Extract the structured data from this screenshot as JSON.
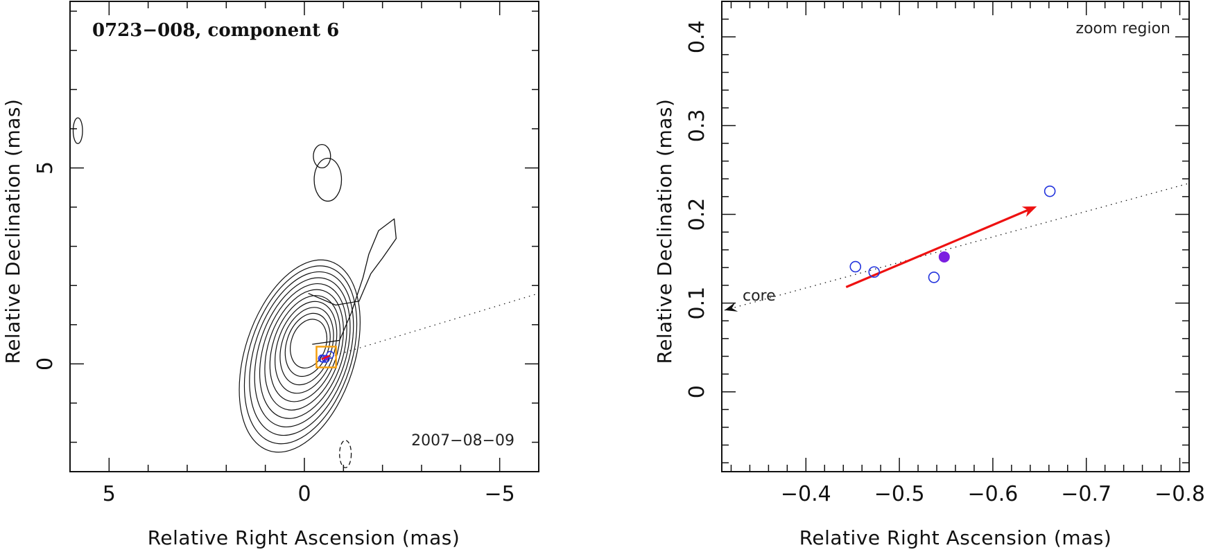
{
  "chart_data": [
    {
      "type": "scatter",
      "panel": "left",
      "title": "0723−008, component 6",
      "annotation": "2007−08−09",
      "xlabel": "Relative Right Ascension (mas)",
      "ylabel": "Relative Declination (mas)",
      "xlim": [
        6.0,
        -6.0
      ],
      "ylim": [
        -2.75,
        9.25
      ],
      "x_ticks": [
        {
          "v": 5,
          "label": "5"
        },
        {
          "v": 0,
          "label": "0"
        },
        {
          "v": -5,
          "label": "−5"
        }
      ],
      "y_ticks": [
        {
          "v": 0,
          "label": "0"
        },
        {
          "v": 5,
          "label": "5"
        }
      ],
      "contours": {
        "core_center": [
          0.12,
          0.2
        ],
        "core_levels": 11,
        "extended": [
          [
            -0.2,
            0.5
          ],
          [
            -0.9,
            0.6
          ],
          [
            -1.2,
            1.3
          ],
          [
            -1.5,
            2.2
          ],
          [
            -1.65,
            2.8
          ],
          [
            -1.9,
            3.4
          ],
          [
            -2.3,
            3.7
          ],
          [
            -2.35,
            3.2
          ],
          [
            -2.0,
            2.7
          ],
          [
            -1.7,
            2.3
          ],
          [
            -1.4,
            1.6
          ],
          [
            -0.8,
            1.5
          ],
          [
            -0.1,
            1.8
          ]
        ],
        "islands": [
          {
            "cx": -0.45,
            "cy": 5.3,
            "rx": 0.22,
            "ry": 0.3
          },
          {
            "cx": -0.6,
            "cy": 4.7,
            "rx": 0.35,
            "ry": 0.55
          },
          {
            "cx": 5.8,
            "cy": 5.95,
            "rx": 0.12,
            "ry": 0.33
          },
          {
            "cx": -1.05,
            "cy": -2.3,
            "rx": 0.15,
            "ry": 0.35,
            "dashed": true
          }
        ]
      },
      "jet_line": {
        "from": [
          -0.4,
          0.1
        ],
        "to": [
          -6.0,
          1.8
        ]
      },
      "zoom_box": {
        "x": [
          -0.31,
          -0.81
        ],
        "y": [
          -0.09,
          0.44
        ]
      },
      "markers": [
        {
          "x": -0.45,
          "y": 0.14
        },
        {
          "x": -0.48,
          "y": 0.13
        },
        {
          "x": -0.55,
          "y": 0.13
        },
        {
          "x": -0.66,
          "y": 0.23
        }
      ],
      "filled_marker": {
        "x": -0.55,
        "y": 0.15
      }
    },
    {
      "type": "scatter",
      "panel": "right",
      "annotation": "zoom region",
      "core_label": "core",
      "xlabel": "Relative Right Ascension (mas)",
      "ylabel": "Relative Declination (mas)",
      "xlim": [
        -0.31,
        -0.81
      ],
      "ylim": [
        -0.09,
        0.44
      ],
      "x_ticks": [
        {
          "v": -0.4,
          "label": "−0.4"
        },
        {
          "v": -0.5,
          "label": "−0.5"
        },
        {
          "v": -0.6,
          "label": "−0.6"
        },
        {
          "v": -0.7,
          "label": "−0.7"
        },
        {
          "v": -0.8,
          "label": "−0.8"
        }
      ],
      "y_ticks": [
        {
          "v": 0,
          "label": "0"
        },
        {
          "v": 0.1,
          "label": "0.1"
        },
        {
          "v": 0.2,
          "label": "0.2"
        },
        {
          "v": 0.3,
          "label": "0.3"
        },
        {
          "v": 0.4,
          "label": "0.4"
        }
      ],
      "open_points": [
        {
          "x": -0.453,
          "y": 0.141
        },
        {
          "x": -0.473,
          "y": 0.135
        },
        {
          "x": -0.537,
          "y": 0.129
        },
        {
          "x": -0.661,
          "y": 0.226
        }
      ],
      "filled_point": {
        "x": -0.548,
        "y": 0.152
      },
      "velocity_arrow": {
        "from": [
          -0.443,
          0.118
        ],
        "to": [
          -0.647,
          0.209
        ],
        "color": "#ee1111"
      },
      "jet_line": {
        "from": [
          -0.313,
          0.092
        ],
        "to": [
          -0.81,
          0.235
        ]
      },
      "core_arrow": {
        "x": -0.313,
        "y": 0.092
      }
    }
  ],
  "colors": {
    "axis": "#111111",
    "contour": "#111111",
    "open_marker": "#2233dd",
    "filled_marker": "#7b1fe0",
    "arrow": "#ee1111",
    "zoom_box": "#f5a00f"
  }
}
